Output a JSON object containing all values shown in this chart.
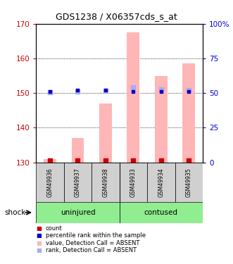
{
  "title": "GDS1238 / X06357cds_s_at",
  "samples": [
    "GSM49936",
    "GSM49937",
    "GSM49938",
    "GSM49933",
    "GSM49934",
    "GSM49935"
  ],
  "ylim_left": [
    130,
    170
  ],
  "ylim_right": [
    0,
    100
  ],
  "yticks_left": [
    130,
    140,
    150,
    160,
    170
  ],
  "yticks_right": [
    0,
    25,
    50,
    75,
    100
  ],
  "bar_bottom": 130,
  "bar_color": "#ffb6b6",
  "bar_values": [
    131.0,
    137.0,
    147.0,
    167.5,
    155.0,
    158.5
  ],
  "rank_values_pct": [
    50.5,
    51.0,
    51.5,
    54.0,
    52.5,
    52.0
  ],
  "count_left": [
    130.5,
    130.5,
    130.5,
    130.5,
    130.5,
    130.5
  ],
  "percentile_left": [
    150.5,
    150.8,
    150.9,
    150.5,
    150.5,
    150.5
  ],
  "left_axis_color": "#cc0000",
  "right_axis_color": "#0000cc",
  "bar_color_absent": "#ffb6b6",
  "rank_color_absent": "#aaaaee",
  "count_color": "#cc0000",
  "percentile_color": "#0000cc",
  "group_colors": [
    "#90ee90",
    "#90ee90"
  ],
  "legend_items": [
    "count",
    "percentile rank within the sample",
    "value, Detection Call = ABSENT",
    "rank, Detection Call = ABSENT"
  ],
  "legend_colors": [
    "#cc0000",
    "#0000cc",
    "#ffb6b6",
    "#aaaaee"
  ]
}
